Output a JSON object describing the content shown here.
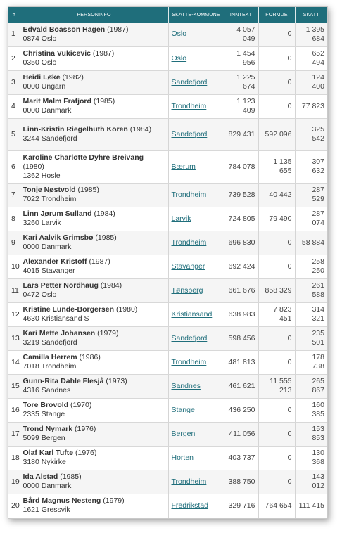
{
  "header": {
    "index": "#",
    "personinfo": "Personinfo",
    "kommune": "Skatte-kommune",
    "inntekt": "Inntekt",
    "formue": "Formue",
    "skatt": "Skatt"
  },
  "rows": [
    {
      "index": "1",
      "name": "Edvald Boasson Hagen",
      "year": "(1987)",
      "address": "0874 Oslo",
      "kommune": "Oslo",
      "inntekt": "4 057 049",
      "formue": "0",
      "skatt": "1 395 684"
    },
    {
      "index": "2",
      "name": "Christina Vukicevic",
      "year": "(1987)",
      "address": "0350 Oslo",
      "kommune": "Oslo",
      "inntekt": "1 454 956",
      "formue": "0",
      "skatt": "652 494"
    },
    {
      "index": "3",
      "name": "Heidi Løke",
      "year": "(1982)",
      "address": "0000 Ungarn",
      "kommune": "Sandefjord",
      "inntekt": "1 225 674",
      "formue": "0",
      "skatt": "124 400"
    },
    {
      "index": "4",
      "name": "Marit Malm Frafjord",
      "year": "(1985)",
      "address": "0000 Danmark",
      "kommune": "Trondheim",
      "inntekt": "1 123 409",
      "formue": "0",
      "skatt": "77 823"
    },
    {
      "index": "5",
      "name": "Linn-Kristin Riegelhuth Koren",
      "year": "(1984)",
      "address": "3244 Sandefjord",
      "kommune": "Sandefjord",
      "inntekt": "829 431",
      "formue": "592 096",
      "skatt": "325 542"
    },
    {
      "index": "6",
      "name": "Karoline Charlotte Dyhre Breivang",
      "year": "(1980)",
      "address": "1362 Hosle",
      "kommune": "Bærum",
      "inntekt": "784 078",
      "formue": "1 135 655",
      "skatt": "307 632"
    },
    {
      "index": "7",
      "name": "Tonje Nøstvold",
      "year": "(1985)",
      "address": "7022 Trondheim",
      "kommune": "Trondheim",
      "inntekt": "739 528",
      "formue": "40 442",
      "skatt": "287 529"
    },
    {
      "index": "8",
      "name": "Linn Jørum Sulland",
      "year": "(1984)",
      "address": "3260 Larvik",
      "kommune": "Larvik",
      "inntekt": "724 805",
      "formue": "79 490",
      "skatt": "287 074"
    },
    {
      "index": "9",
      "name": "Kari Aalvik Grimsbø",
      "year": "(1985)",
      "address": "0000 Danmark",
      "kommune": "Trondheim",
      "inntekt": "696 830",
      "formue": "0",
      "skatt": "58 884"
    },
    {
      "index": "10",
      "name": "Alexander Kristoff",
      "year": "(1987)",
      "address": "4015 Stavanger",
      "kommune": "Stavanger",
      "inntekt": "692 424",
      "formue": "0",
      "skatt": "258 250"
    },
    {
      "index": "11",
      "name": "Lars Petter Nordhaug",
      "year": "(1984)",
      "address": "0472 Oslo",
      "kommune": "Tønsberg",
      "inntekt": "661 676",
      "formue": "858 329",
      "skatt": "261 588"
    },
    {
      "index": "12",
      "name": "Kristine Lunde-Borgersen",
      "year": "(1980)",
      "address": "4630 Kristiansand S",
      "kommune": "Kristiansand",
      "inntekt": "638 983",
      "formue": "7 823 451",
      "skatt": "314 321"
    },
    {
      "index": "13",
      "name": "Kari Mette Johansen",
      "year": "(1979)",
      "address": "3219 Sandefjord",
      "kommune": "Sandefjord",
      "inntekt": "598 456",
      "formue": "0",
      "skatt": "235 501"
    },
    {
      "index": "14",
      "name": "Camilla Herrem",
      "year": "(1986)",
      "address": "7018 Trondheim",
      "kommune": "Trondheim",
      "inntekt": "481 813",
      "formue": "0",
      "skatt": "178 738"
    },
    {
      "index": "15",
      "name": "Gunn-Rita Dahle Flesjå",
      "year": "(1973)",
      "address": "4316 Sandnes",
      "kommune": "Sandnes",
      "inntekt": "461 621",
      "formue": "11 555 213",
      "skatt": "265 867"
    },
    {
      "index": "16",
      "name": "Tore Brovold",
      "year": "(1970)",
      "address": "2335 Stange",
      "kommune": "Stange",
      "inntekt": "436 250",
      "formue": "0",
      "skatt": "160 385"
    },
    {
      "index": "17",
      "name": "Trond Nymark",
      "year": "(1976)",
      "address": "5099 Bergen",
      "kommune": "Bergen",
      "inntekt": "411 056",
      "formue": "0",
      "skatt": "153 853"
    },
    {
      "index": "18",
      "name": "Olaf Karl Tufte",
      "year": "(1976)",
      "address": "3180 Nykirke",
      "kommune": "Horten",
      "inntekt": "403 737",
      "formue": "0",
      "skatt": "130 368"
    },
    {
      "index": "19",
      "name": "Ida Alstad",
      "year": "(1985)",
      "address": "0000 Danmark",
      "kommune": "Trondheim",
      "inntekt": "388 750",
      "formue": "0",
      "skatt": "143 012"
    },
    {
      "index": "20",
      "name": "Bård Magnus Nesteng",
      "year": "(1979)",
      "address": "1621 Gressvik",
      "kommune": "Fredrikstad",
      "inntekt": "329 716",
      "formue": "764 654",
      "skatt": "111 415"
    }
  ]
}
